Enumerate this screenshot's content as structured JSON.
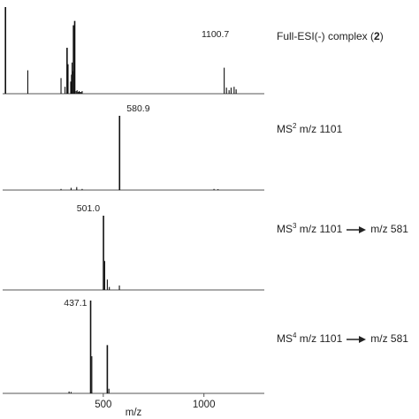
{
  "chart_data": [
    {
      "type": "bar",
      "label_parts": {
        "prefix": "Full-ESI(-) complex (",
        "bold": "2",
        "suffix": ")"
      },
      "peak_label": "1100.7",
      "x": [
        14,
        125,
        290,
        310,
        320,
        325,
        338,
        342,
        345,
        350,
        352,
        358,
        365,
        370,
        375,
        380,
        385,
        390,
        395,
        1100.7,
        1112,
        1125,
        1135,
        1150,
        1160
      ],
      "y": [
        100,
        27,
        18,
        8,
        53,
        34,
        14,
        22,
        36,
        26,
        79,
        84,
        3,
        4,
        2,
        3,
        2,
        2,
        3,
        30,
        7,
        4,
        7,
        8,
        5
      ],
      "label_x": 1100.7
    },
    {
      "type": "bar",
      "label_parts": {
        "ms": "MS",
        "sup": "2",
        "text1": " m/z 1101"
      },
      "peak_label": "580.9",
      "x": [
        290,
        340,
        368,
        395,
        580.9,
        1050,
        1070
      ],
      "y": [
        1.5,
        3,
        4,
        1.5,
        100,
        1.5,
        1.2
      ],
      "label_x": 580.9
    },
    {
      "type": "bar",
      "label_parts": {
        "ms": "MS",
        "sup": "3",
        "text1": " m/z 1101",
        "text2": "m/z 581"
      },
      "peak_label": "501.0",
      "x": [
        501.0,
        507,
        520,
        530,
        580
      ],
      "y": [
        100,
        39,
        14,
        4,
        6
      ],
      "label_x": 501.0
    },
    {
      "type": "bar",
      "label_parts": {
        "ms": "MS",
        "sup": "4",
        "text1": " m/z 1101",
        "text2": "m/z 581"
      },
      "peak_label": "437.1",
      "x": [
        330,
        340,
        437.1,
        443,
        520,
        528
      ],
      "y": [
        2,
        1.5,
        100,
        40,
        52,
        5
      ],
      "label_x": 437.1
    }
  ],
  "axis": {
    "xlabel": "m/z",
    "xlim": [
      0,
      1300
    ],
    "ticks": [
      500,
      1000
    ],
    "tick_labels": [
      "500",
      "1000"
    ]
  }
}
